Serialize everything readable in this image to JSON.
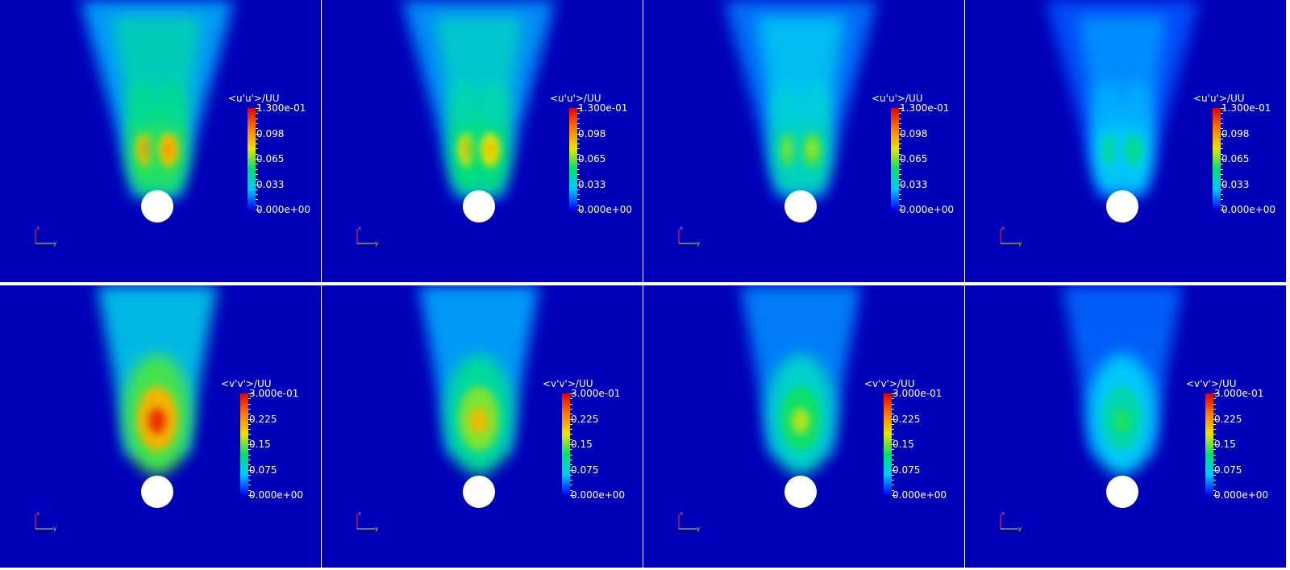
{
  "figure": {
    "panels": [
      {
        "row": 0,
        "col": 0,
        "variable": "<u'u'>/UU",
        "colorbar_labels": [
          "1.300e-01",
          "0.098",
          "0.065",
          "0.033",
          "0.000e+00"
        ],
        "colorbar_range": [
          0,
          0.13
        ],
        "peak_fraction": 0.78,
        "pattern": "twin-lobe"
      },
      {
        "row": 0,
        "col": 1,
        "variable": "<u'u'>/UU",
        "colorbar_labels": [
          "1.300e-01",
          "0.098",
          "0.065",
          "0.033",
          "0.000e+00"
        ],
        "colorbar_range": [
          0,
          0.13
        ],
        "peak_fraction": 0.7,
        "pattern": "twin-lobe"
      },
      {
        "row": 0,
        "col": 2,
        "variable": "<u'u'>/UU",
        "colorbar_labels": [
          "1.300e-01",
          "0.098",
          "0.065",
          "0.033",
          "0.000e+00"
        ],
        "colorbar_range": [
          0,
          0.13
        ],
        "peak_fraction": 0.55,
        "pattern": "twin-lobe"
      },
      {
        "row": 0,
        "col": 3,
        "variable": "<u'u'>/UU",
        "colorbar_labels": [
          "1.300e-01",
          "0.098",
          "0.065",
          "0.033",
          "0.000e+00"
        ],
        "colorbar_range": [
          0,
          0.13
        ],
        "peak_fraction": 0.38,
        "pattern": "twin-lobe"
      },
      {
        "row": 1,
        "col": 0,
        "variable": "<v'v'>/UU",
        "colorbar_labels": [
          "3.000e-01",
          "0.225",
          "0.15",
          "0.075",
          "0.000e+00"
        ],
        "colorbar_range": [
          0,
          0.3
        ],
        "peak_fraction": 0.92,
        "pattern": "single-lobe"
      },
      {
        "row": 1,
        "col": 1,
        "variable": "<v'v'>/UU",
        "colorbar_labels": [
          "3.000e-01",
          "0.225",
          "0.15",
          "0.075",
          "0.000e+00"
        ],
        "colorbar_range": [
          0,
          0.3
        ],
        "peak_fraction": 0.68,
        "pattern": "single-lobe"
      },
      {
        "row": 1,
        "col": 2,
        "variable": "<v'v'>/UU",
        "colorbar_labels": [
          "3.000e-01",
          "0.225",
          "0.15",
          "0.075",
          "0.000e+00"
        ],
        "colorbar_range": [
          0,
          0.3
        ],
        "peak_fraction": 0.55,
        "pattern": "single-lobe"
      },
      {
        "row": 1,
        "col": 3,
        "variable": "<v'v'>/UU",
        "colorbar_labels": [
          "3.000e-01",
          "0.225",
          "0.15",
          "0.075",
          "0.000e+00"
        ],
        "colorbar_range": [
          0,
          0.3
        ],
        "peak_fraction": 0.42,
        "pattern": "single-lobe"
      }
    ],
    "axes_triad": {
      "x_label": "x",
      "y_label": "y"
    },
    "colors": {
      "background": "#0000b8",
      "cylinder": "#ffffff",
      "colormap": [
        "#0000ff",
        "#00c8ff",
        "#00e070",
        "#e6e600",
        "#ff7a00",
        "#e00000"
      ]
    }
  }
}
